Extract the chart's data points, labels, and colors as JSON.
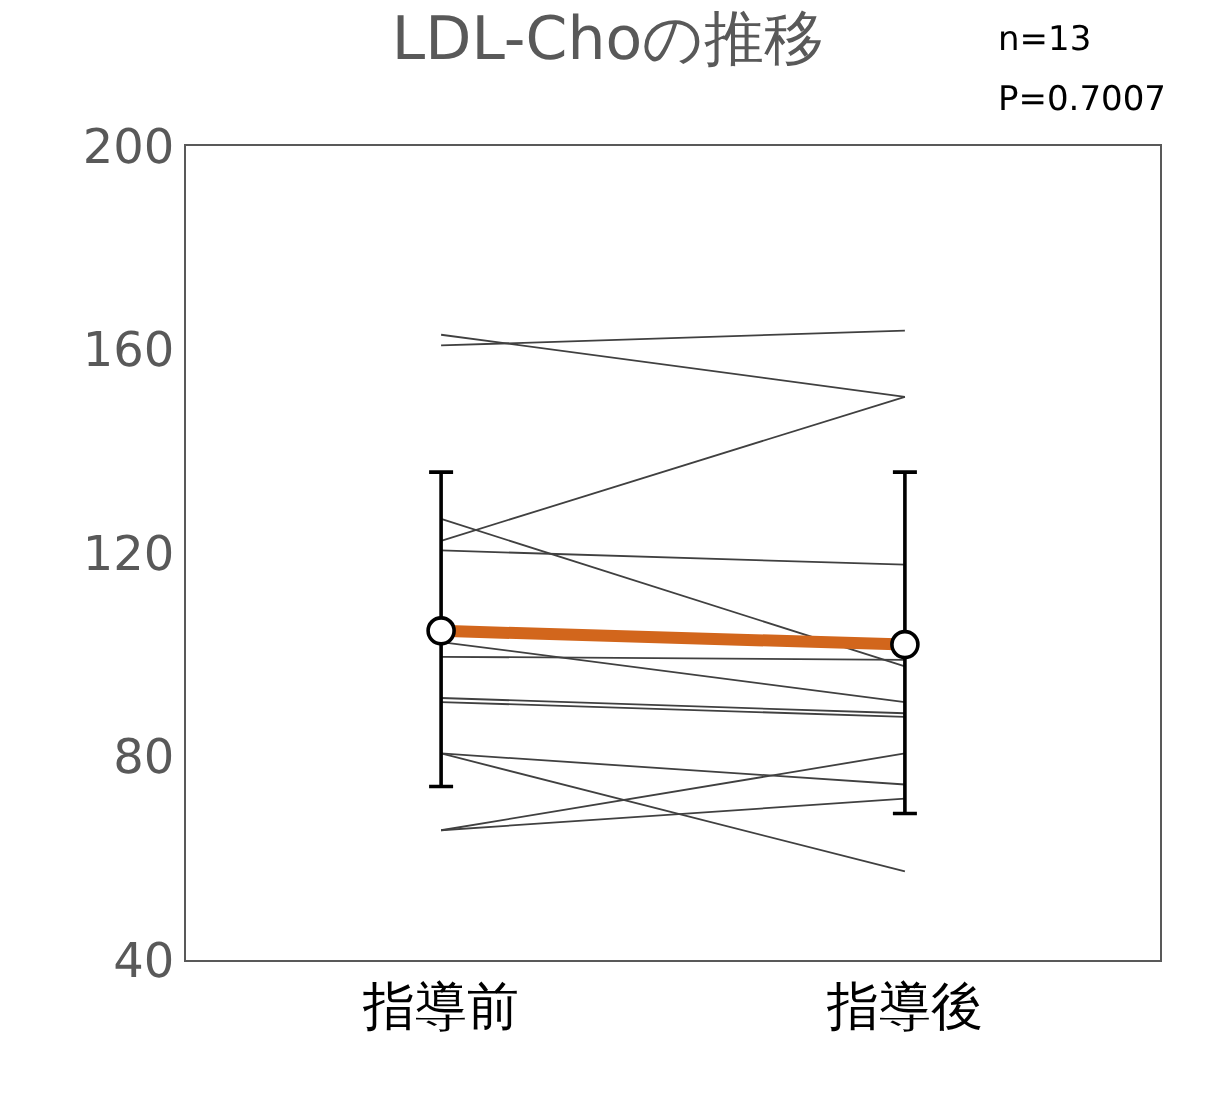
{
  "chart_data": {
    "type": "line",
    "title": "LDL-Choの推移",
    "annotations": [
      "n=13",
      "P=0.7007"
    ],
    "categories": [
      "指導前",
      "指導後"
    ],
    "series": [
      {
        "color": "#404040",
        "values": [
          162.9,
          150.7
        ]
      },
      {
        "color": "#404040",
        "values": [
          160.8,
          163.7
        ]
      },
      {
        "color": "#404040",
        "values": [
          126.7,
          97.7
        ]
      },
      {
        "color": "#404040",
        "values": [
          122.4,
          150.7
        ]
      },
      {
        "color": "#404040",
        "values": [
          120.5,
          117.7
        ]
      },
      {
        "color": "#404040",
        "values": [
          102.5,
          90.7
        ]
      },
      {
        "color": "#404040",
        "values": [
          99.6,
          99.0
        ]
      },
      {
        "color": "#404040",
        "values": [
          91.5,
          88.5
        ]
      },
      {
        "color": "#404040",
        "values": [
          90.7,
          87.8
        ]
      },
      {
        "color": "#404040",
        "values": [
          80.6,
          74.5
        ]
      },
      {
        "color": "#404040",
        "values": [
          80.6,
          57.4
        ]
      },
      {
        "color": "#404040",
        "values": [
          65.5,
          80.6
        ]
      },
      {
        "color": "#404040",
        "values": [
          65.5,
          71.7
        ]
      },
      {
        "color": "#d2661c",
        "values": [
          104.7,
          102.0
        ],
        "marker": "circle",
        "errors": [
          [
            74.1,
            135.9
          ],
          [
            68.8,
            135.9
          ]
        ]
      }
    ],
    "ylim": [
      40,
      200
    ],
    "yticks": [
      40,
      80,
      120,
      160,
      200
    ],
    "marker": "none",
    "line_style": "solid"
  }
}
